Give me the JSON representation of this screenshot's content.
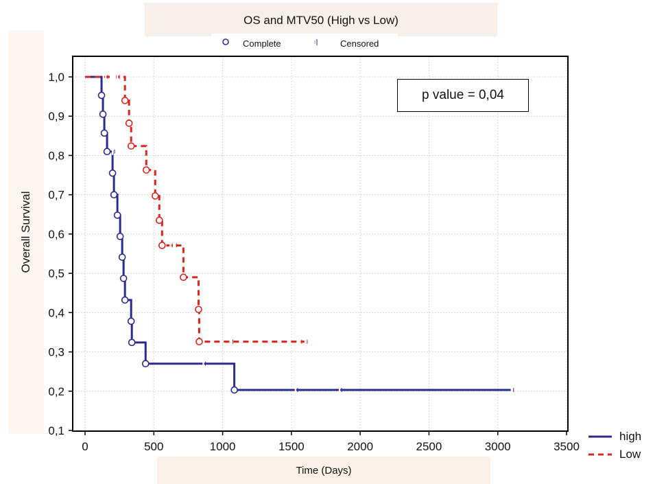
{
  "chart_data": {
    "type": "line",
    "title": "OS and MTV50 (High vs Low)",
    "xlabel": "Time (Days)",
    "ylabel": "Overall Survival",
    "xlim": [
      0,
      3500
    ],
    "ylim": [
      0.1,
      1.0
    ],
    "x_ticks": [
      0,
      500,
      1000,
      1500,
      2000,
      2500,
      3000,
      3500
    ],
    "y_ticks": [
      0.1,
      0.2,
      0.3,
      0.4,
      0.5,
      0.6,
      0.7,
      0.8,
      0.9,
      1.0
    ],
    "y_tick_labels": [
      "0,1",
      "0,2",
      "0,3",
      "0,4",
      "0,5",
      "0,6",
      "0,7",
      "0,8",
      "0,9",
      "1,0"
    ],
    "grid": true,
    "marker_legend": {
      "complete": "Complete",
      "censored": "Censored"
    },
    "annotation": "p value = 0,04",
    "series": [
      {
        "name": "high",
        "color": "#2e2a8c",
        "style": "solid",
        "steps": [
          [
            0,
            1.0
          ],
          [
            120,
            0.953
          ],
          [
            130,
            0.905
          ],
          [
            140,
            0.857
          ],
          [
            160,
            0.81
          ],
          [
            200,
            0.755
          ],
          [
            210,
            0.7
          ],
          [
            235,
            0.648
          ],
          [
            255,
            0.594
          ],
          [
            270,
            0.541
          ],
          [
            280,
            0.487
          ],
          [
            290,
            0.432
          ],
          [
            335,
            0.378
          ],
          [
            340,
            0.324
          ],
          [
            440,
            0.27
          ],
          [
            1085,
            0.203
          ],
          [
            3100,
            0.203
          ]
        ],
        "events": [
          [
            120,
            0.953
          ],
          [
            130,
            0.905
          ],
          [
            140,
            0.857
          ],
          [
            160,
            0.81
          ],
          [
            200,
            0.755
          ],
          [
            210,
            0.7
          ],
          [
            235,
            0.648
          ],
          [
            255,
            0.594
          ],
          [
            270,
            0.541
          ],
          [
            280,
            0.487
          ],
          [
            290,
            0.432
          ],
          [
            335,
            0.378
          ],
          [
            340,
            0.324
          ],
          [
            440,
            0.27
          ],
          [
            1085,
            0.203
          ]
        ],
        "censored": [
          [
            200,
            0.81
          ],
          [
            860,
            0.27
          ],
          [
            1530,
            0.203
          ],
          [
            1850,
            0.203
          ],
          [
            3100,
            0.203
          ]
        ]
      },
      {
        "name": "Low",
        "color": "#d7261e",
        "style": "dashed",
        "steps": [
          [
            0,
            1.0
          ],
          [
            290,
            0.94
          ],
          [
            320,
            0.882
          ],
          [
            335,
            0.824
          ],
          [
            445,
            0.763
          ],
          [
            510,
            0.697
          ],
          [
            540,
            0.635
          ],
          [
            560,
            0.571
          ],
          [
            715,
            0.49
          ],
          [
            825,
            0.408
          ],
          [
            830,
            0.326
          ],
          [
            1600,
            0.326
          ]
        ],
        "events": [
          [
            290,
            0.94
          ],
          [
            320,
            0.882
          ],
          [
            335,
            0.824
          ],
          [
            445,
            0.763
          ],
          [
            510,
            0.697
          ],
          [
            540,
            0.635
          ],
          [
            560,
            0.571
          ],
          [
            715,
            0.49
          ],
          [
            825,
            0.408
          ],
          [
            830,
            0.326
          ]
        ],
        "censored": [
          [
            150,
            1.0
          ],
          [
            190,
            1.0
          ],
          [
            200,
            1.0
          ],
          [
            210,
            1.0
          ],
          [
            220,
            1.0
          ],
          [
            235,
            1.0
          ],
          [
            620,
            0.571
          ],
          [
            650,
            0.571
          ],
          [
            1060,
            0.326
          ],
          [
            1560,
            0.326
          ],
          [
            1600,
            0.326
          ]
        ]
      }
    ]
  }
}
